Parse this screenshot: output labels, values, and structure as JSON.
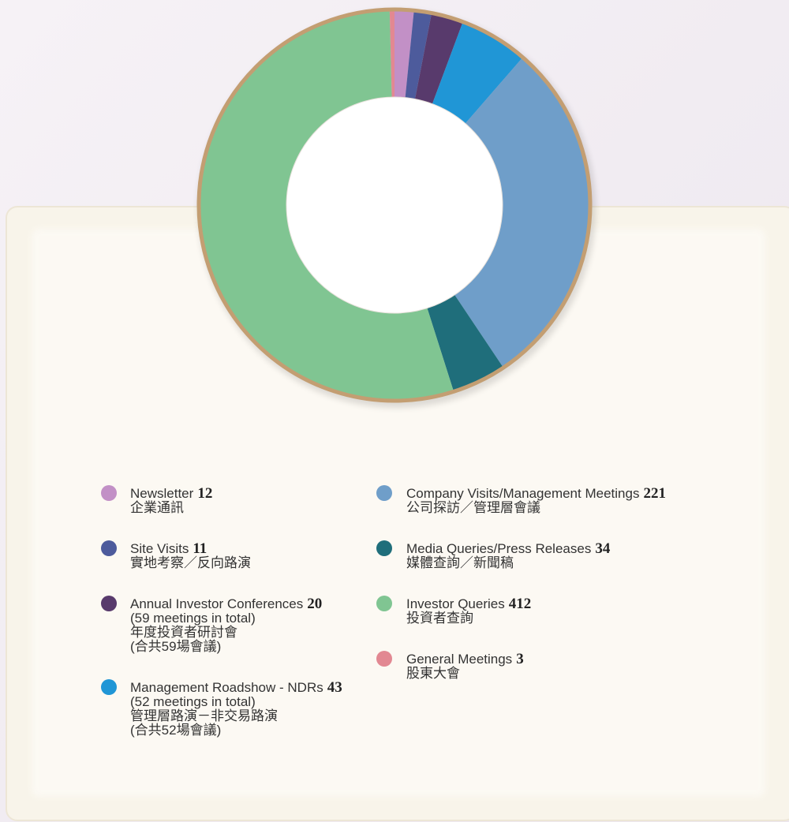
{
  "chart_data": {
    "type": "pie",
    "categories": [
      "Newsletter",
      "Site Visits",
      "Annual Investor Conferences",
      "Management Roadshow - NDRs",
      "Company Visits/Management Meetings",
      "Media Queries/Press Releases",
      "Investor Queries",
      "General Meetings"
    ],
    "values": [
      12,
      11,
      20,
      43,
      221,
      34,
      412,
      3
    ],
    "colors": [
      "#c290c6",
      "#4d5b9c",
      "#583a6c",
      "#2096d6",
      "#6f9ec9",
      "#1f6e7b",
      "#80c592",
      "#e28892"
    ],
    "notes": [
      [
        "企業通訊"
      ],
      [
        "實地考察／反向路演"
      ],
      [
        "(59 meetings in total)",
        "年度投資者研討會",
        "(合共59場會議)"
      ],
      [
        "(52 meetings in total)",
        "管理層路演－非交易路演",
        "(合共52場會議)"
      ],
      [
        "公司探訪／管理層會議"
      ],
      [
        "媒體查詢／新聞稿"
      ],
      [
        "投資者查詢"
      ],
      [
        "股東大會"
      ]
    ],
    "legend": "bottom"
  }
}
